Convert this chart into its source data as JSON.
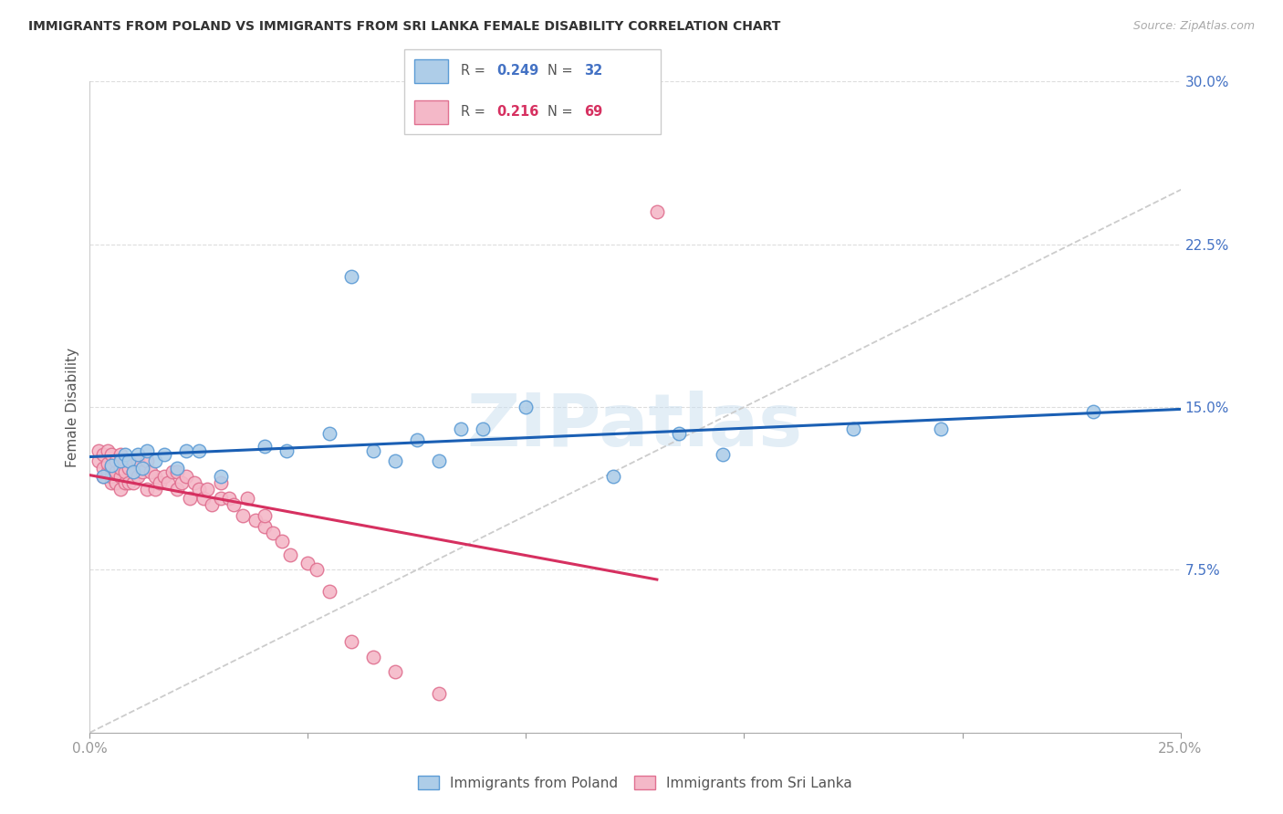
{
  "title": "IMMIGRANTS FROM POLAND VS IMMIGRANTS FROM SRI LANKA FEMALE DISABILITY CORRELATION CHART",
  "source": "Source: ZipAtlas.com",
  "ylabel": "Female Disability",
  "xlim": [
    0.0,
    0.25
  ],
  "ylim": [
    0.0,
    0.3
  ],
  "xtick_positions": [
    0.0,
    0.05,
    0.1,
    0.15,
    0.2,
    0.25
  ],
  "xticklabels": [
    "0.0%",
    "",
    "",
    "",
    "",
    "25.0%"
  ],
  "ytick_positions": [
    0.0,
    0.075,
    0.15,
    0.225,
    0.3
  ],
  "yticklabels_right": [
    "",
    "7.5%",
    "15.0%",
    "22.5%",
    "30.0%"
  ],
  "poland_fill_color": "#aecde8",
  "poland_edge_color": "#5b9bd5",
  "srilanka_fill_color": "#f4b8c8",
  "srilanka_edge_color": "#e07090",
  "trend_poland_color": "#1a5fb4",
  "trend_srilanka_color": "#d63060",
  "diagonal_color": "#cccccc",
  "R_poland": 0.249,
  "N_poland": 32,
  "R_srilanka": 0.216,
  "N_srilanka": 69,
  "watermark": "ZIPatlas",
  "poland_x": [
    0.003,
    0.005,
    0.007,
    0.008,
    0.009,
    0.01,
    0.011,
    0.012,
    0.013,
    0.015,
    0.017,
    0.02,
    0.022,
    0.025,
    0.03,
    0.04,
    0.045,
    0.055,
    0.06,
    0.065,
    0.07,
    0.075,
    0.08,
    0.085,
    0.09,
    0.1,
    0.12,
    0.135,
    0.145,
    0.175,
    0.195,
    0.23
  ],
  "poland_y": [
    0.118,
    0.123,
    0.125,
    0.128,
    0.125,
    0.12,
    0.128,
    0.122,
    0.13,
    0.125,
    0.128,
    0.122,
    0.13,
    0.13,
    0.118,
    0.132,
    0.13,
    0.138,
    0.21,
    0.13,
    0.125,
    0.135,
    0.125,
    0.14,
    0.14,
    0.15,
    0.118,
    0.138,
    0.128,
    0.14,
    0.14,
    0.148
  ],
  "srilanka_x": [
    0.002,
    0.002,
    0.003,
    0.003,
    0.003,
    0.004,
    0.004,
    0.004,
    0.005,
    0.005,
    0.005,
    0.005,
    0.006,
    0.006,
    0.006,
    0.007,
    0.007,
    0.007,
    0.007,
    0.008,
    0.008,
    0.008,
    0.009,
    0.009,
    0.01,
    0.01,
    0.01,
    0.011,
    0.011,
    0.012,
    0.013,
    0.013,
    0.014,
    0.015,
    0.015,
    0.016,
    0.017,
    0.018,
    0.019,
    0.02,
    0.02,
    0.021,
    0.022,
    0.023,
    0.024,
    0.025,
    0.026,
    0.027,
    0.028,
    0.03,
    0.03,
    0.032,
    0.033,
    0.035,
    0.036,
    0.038,
    0.04,
    0.04,
    0.042,
    0.044,
    0.046,
    0.05,
    0.052,
    0.055,
    0.06,
    0.065,
    0.07,
    0.08,
    0.13
  ],
  "srilanka_y": [
    0.125,
    0.13,
    0.118,
    0.122,
    0.128,
    0.12,
    0.124,
    0.13,
    0.115,
    0.118,
    0.122,
    0.128,
    0.115,
    0.12,
    0.125,
    0.112,
    0.118,
    0.122,
    0.128,
    0.115,
    0.12,
    0.125,
    0.115,
    0.122,
    0.115,
    0.12,
    0.125,
    0.118,
    0.125,
    0.12,
    0.112,
    0.125,
    0.12,
    0.112,
    0.118,
    0.115,
    0.118,
    0.115,
    0.12,
    0.112,
    0.12,
    0.115,
    0.118,
    0.108,
    0.115,
    0.112,
    0.108,
    0.112,
    0.105,
    0.108,
    0.115,
    0.108,
    0.105,
    0.1,
    0.108,
    0.098,
    0.095,
    0.1,
    0.092,
    0.088,
    0.082,
    0.078,
    0.075,
    0.065,
    0.042,
    0.035,
    0.028,
    0.018,
    0.24
  ]
}
